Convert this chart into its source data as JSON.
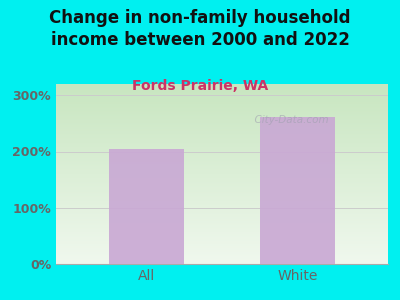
{
  "title": "Change in non-family household\nincome between 2000 and 2022",
  "subtitle": "Fords Prairie, WA",
  "categories": [
    "All",
    "White"
  ],
  "values": [
    205,
    262
  ],
  "bar_color": "#c9a8d4",
  "title_fontsize": 12,
  "subtitle_fontsize": 10,
  "subtitle_color": "#cc3366",
  "title_color": "#111111",
  "tick_color": "#666666",
  "background_outer": "#00f0f0",
  "background_plot_top": "#c8e6c0",
  "background_plot_bottom": "#f0f4ee",
  "ylim": [
    0,
    320
  ],
  "yticks": [
    0,
    100,
    200,
    300
  ],
  "yticklabels": [
    "0%",
    "100%",
    "200%",
    "300%"
  ],
  "grid_color": "#cccccc",
  "watermark": "  City-Data.com"
}
